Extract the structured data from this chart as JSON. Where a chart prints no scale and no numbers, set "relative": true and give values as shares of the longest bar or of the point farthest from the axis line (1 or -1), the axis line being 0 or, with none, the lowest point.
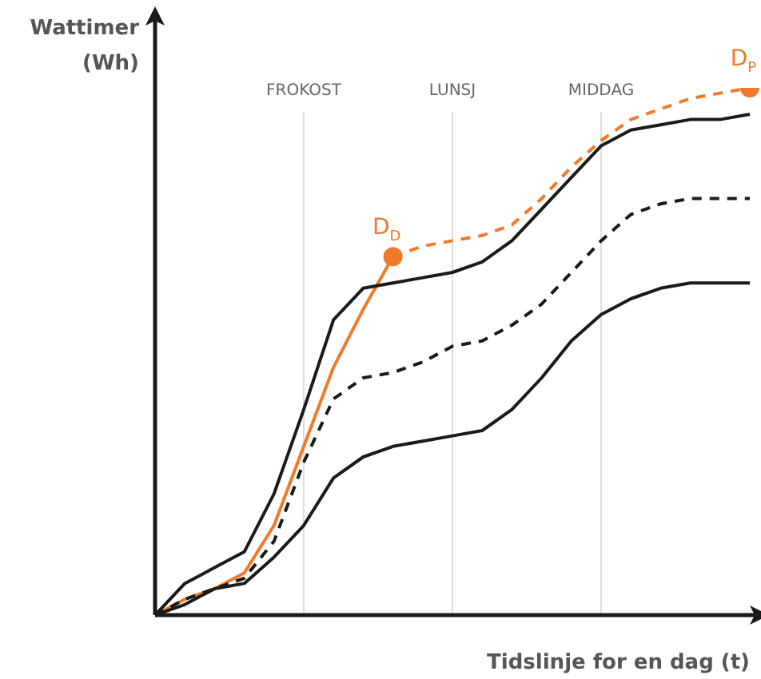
{
  "chart_data": {
    "type": "line",
    "relative": true,
    "xlabel": "Tidslinje for en dag (t)",
    "ylabel": "Wattimer\n(Wh)",
    "categories": [
      null,
      null,
      null,
      null,
      null,
      "FROKOST",
      null,
      null,
      null,
      null,
      "LUNSJ",
      null,
      null,
      null,
      null,
      "MIDDAG",
      null,
      null,
      null,
      null,
      null
    ],
    "series": [
      {
        "color": "#1a1a1a",
        "line_style": "solid",
        "values": [
          0,
          0.06,
          0.09,
          0.12,
          0.23,
          0.39,
          0.56,
          0.62,
          0.63,
          0.64,
          0.65,
          0.67,
          0.71,
          0.77,
          0.83,
          0.89,
          0.92,
          0.93,
          0.94,
          0.94,
          0.95
        ]
      },
      {
        "color": "#1a1a1a",
        "line_style": "dashed",
        "values": [
          0,
          0.03,
          0.05,
          0.07,
          0.14,
          0.29,
          0.41,
          0.45,
          0.46,
          0.48,
          0.51,
          0.52,
          0.55,
          0.59,
          0.65,
          0.71,
          0.76,
          0.78,
          0.79,
          0.79,
          0.79
        ]
      },
      {
        "color": "#1a1a1a",
        "line_style": "solid",
        "values": [
          0,
          0.02,
          0.05,
          0.06,
          0.11,
          0.17,
          0.26,
          0.3,
          0.32,
          0.33,
          0.34,
          0.35,
          0.39,
          0.45,
          0.52,
          0.57,
          0.6,
          0.62,
          0.63,
          0.63,
          0.63
        ]
      },
      {
        "color": "#f07a2a",
        "line_style": "solid",
        "values": [
          0,
          0.03,
          0.05,
          0.08,
          0.17,
          0.32,
          0.47,
          0.58,
          0.68,
          null,
          null,
          null,
          null,
          null,
          null,
          null,
          null,
          null,
          null,
          null,
          null
        ]
      },
      {
        "color": "#f07a2a",
        "line_style": "dashed",
        "values": [
          null,
          null,
          null,
          null,
          null,
          null,
          null,
          null,
          0.68,
          0.7,
          0.71,
          0.72,
          0.74,
          0.79,
          0.85,
          0.9,
          0.94,
          0.96,
          0.98,
          0.99,
          1
        ]
      },
      {
        "type": "scatter",
        "color": "#f07a2a",
        "marker": "circle",
        "values": [
          null,
          null,
          null,
          null,
          null,
          null,
          null,
          null,
          0.68,
          null,
          null,
          null,
          null,
          null,
          null,
          null,
          null,
          null,
          null,
          null,
          1
        ]
      }
    ],
    "annotations": [
      "D$_{D}$",
      "D$_{P}$"
    ],
    "grid": "x",
    "legend": false
  }
}
